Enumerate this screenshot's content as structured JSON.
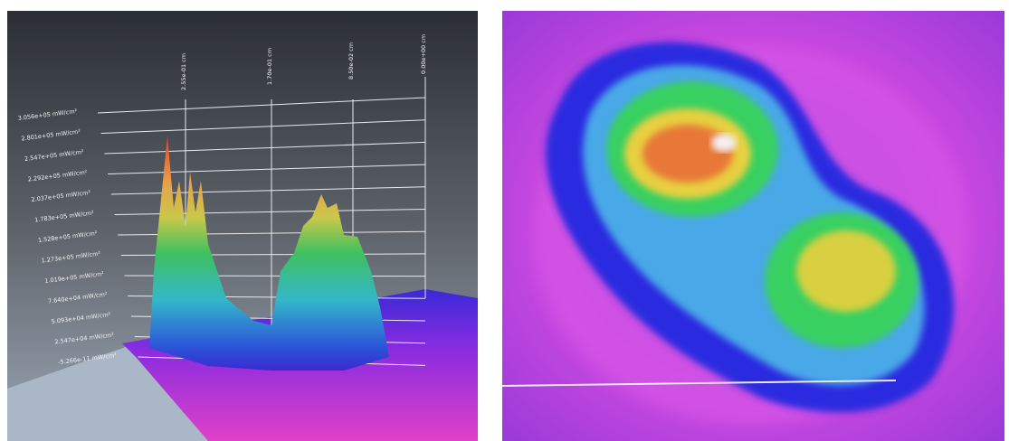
{
  "left_panel": {
    "intensity_labels": [
      "3.056e+05 mW/cm²",
      "2.801e+05 mW/cm²",
      "2.547e+05 mW/cm²",
      "2.292e+05 mW/cm²",
      "2.037e+05 mW/cm²",
      "1.783e+05 mW/cm²",
      "1.528e+05 mW/cm²",
      "1.273e+05 mW/cm²",
      "1.019e+05 mW/cm²",
      "7.640e+04 mW/cm²",
      "5.093e+04 mW/cm²",
      "2.547e+04 mW/cm²",
      "-5.266e-11 mW/cm²"
    ],
    "distance_labels": [
      "2.55e-01 cm",
      "1.70e-01 cm",
      "8.50e-02 cm",
      "0.00e+00 cm"
    ]
  }
}
